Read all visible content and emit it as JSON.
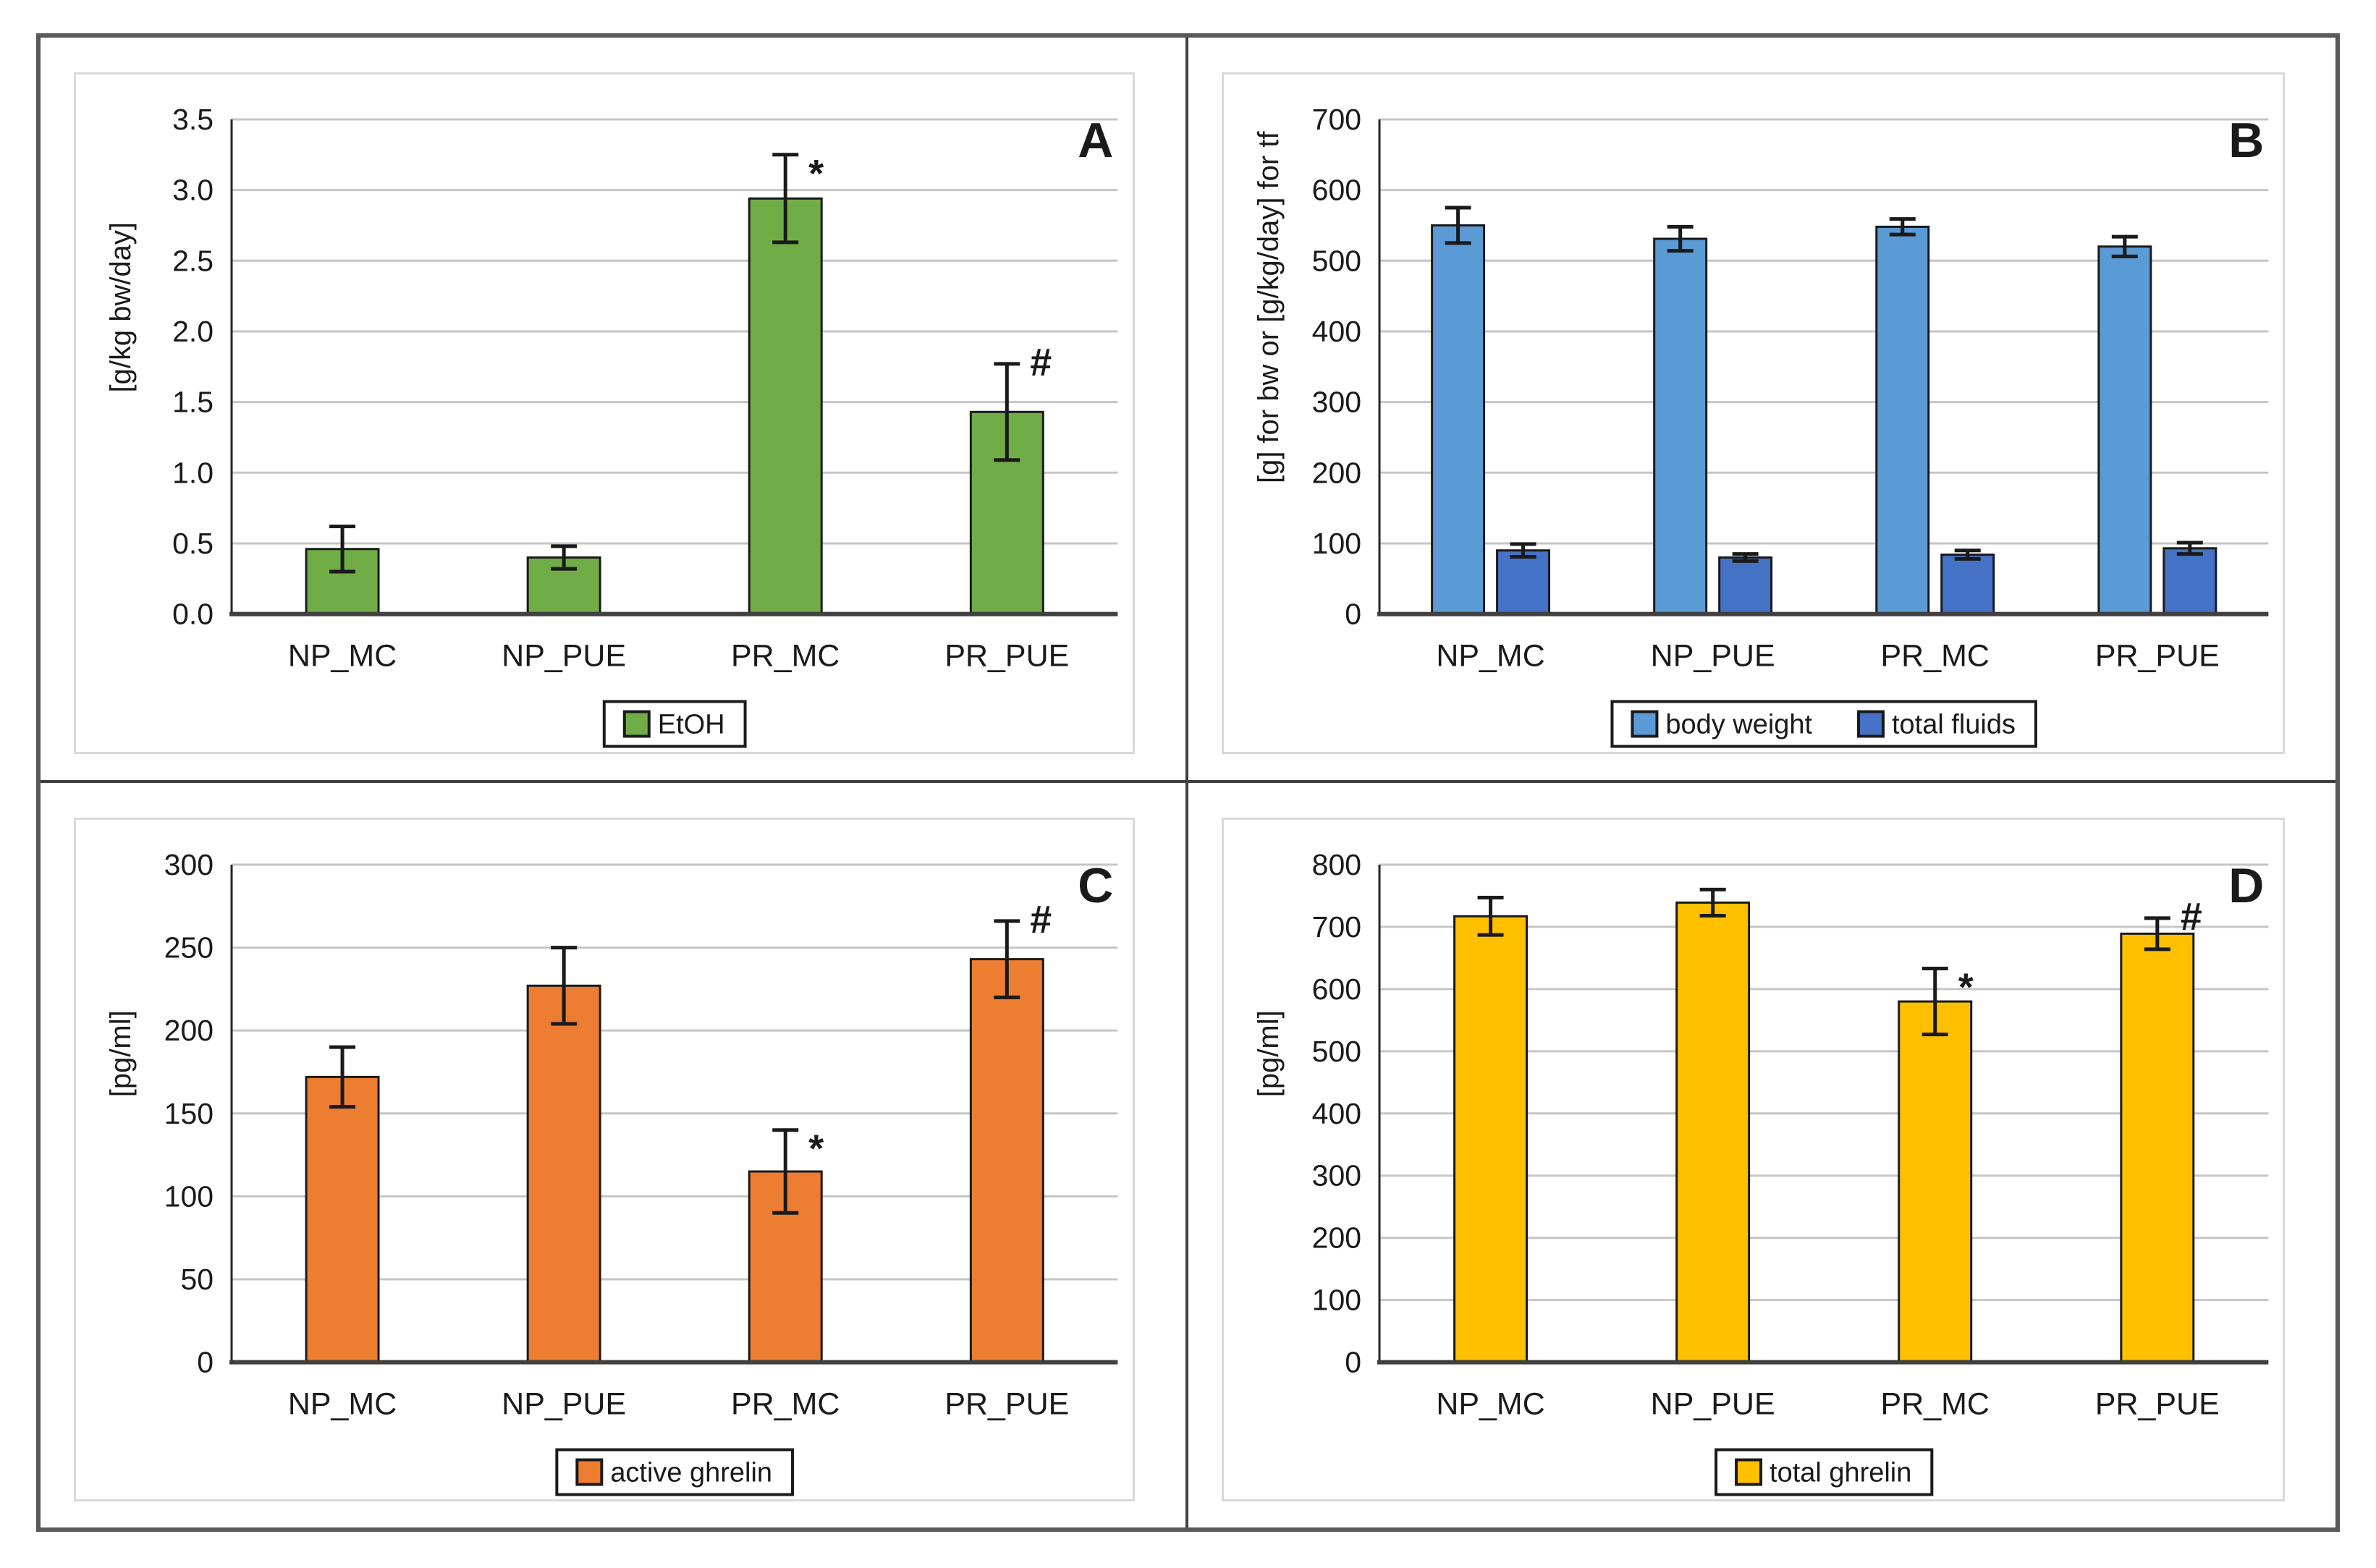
{
  "figure": {
    "description": "Four-panel bar chart figure (A, B, C, D) comparing groups NP_MC, NP_PUE, PR_MC, PR_PUE with standard-error bars and significance marks",
    "style": {
      "outer_border_color": "#595959",
      "divider_color": "#404040",
      "chart_box_border_color": "#d9d9d9",
      "gridline_color": "#c6c6c6",
      "axis_color": "#404040",
      "text_color": "#1a1a1a",
      "bar_outline_color": "#1a1a1a",
      "background": "#ffffff"
    }
  },
  "chart_data": [
    {
      "type": "bar",
      "panel_letter": "A",
      "ylabel": "[g/kg bw/day]",
      "ylim": [
        0,
        3.5
      ],
      "y_step": 0.5,
      "y_decimals": 1,
      "grid": true,
      "legend_position": "bottom",
      "categories": [
        "NP_MC",
        "NP_PUE",
        "PR_MC",
        "PR_PUE"
      ],
      "series": [
        {
          "name": "EtOH",
          "color": "#70AD47",
          "values": [
            0.46,
            0.4,
            2.94,
            1.43
          ],
          "errors": [
            0.16,
            0.08,
            0.31,
            0.34
          ]
        }
      ],
      "annotations": [
        {
          "category_index": 2,
          "series_index": 0,
          "symbol": "*"
        },
        {
          "category_index": 3,
          "series_index": 0,
          "symbol": "#"
        }
      ]
    },
    {
      "type": "bar",
      "panel_letter": "B",
      "ylabel": "[g] for bw or [g/kg/day] for tf",
      "ylim": [
        0,
        700
      ],
      "y_step": 100,
      "y_decimals": 0,
      "grid": true,
      "legend_position": "bottom",
      "categories": [
        "NP_MC",
        "NP_PUE",
        "PR_MC",
        "PR_PUE"
      ],
      "series": [
        {
          "name": "body weight",
          "color": "#5B9BD5",
          "values": [
            550,
            531,
            548,
            520
          ],
          "errors": [
            25,
            17,
            11,
            14
          ]
        },
        {
          "name": "total fluids",
          "color": "#4472C4",
          "values": [
            90,
            80,
            84,
            93
          ],
          "errors": [
            9,
            5,
            6,
            8
          ]
        }
      ],
      "annotations": []
    },
    {
      "type": "bar",
      "panel_letter": "C",
      "ylabel": "[pg/ml]",
      "ylim": [
        0,
        300
      ],
      "y_step": 50,
      "y_decimals": 0,
      "grid": true,
      "legend_position": "bottom",
      "categories": [
        "NP_MC",
        "NP_PUE",
        "PR_MC",
        "PR_PUE"
      ],
      "series": [
        {
          "name": "active ghrelin",
          "color": "#ED7D31",
          "values": [
            172,
            227,
            115,
            243
          ],
          "errors": [
            18,
            23,
            25,
            23
          ]
        }
      ],
      "annotations": [
        {
          "category_index": 2,
          "series_index": 0,
          "symbol": "*"
        },
        {
          "category_index": 3,
          "series_index": 0,
          "symbol": "#"
        }
      ]
    },
    {
      "type": "bar",
      "panel_letter": "D",
      "ylabel": "[pg/ml]",
      "ylim": [
        0,
        800
      ],
      "y_step": 100,
      "y_decimals": 0,
      "grid": true,
      "legend_position": "bottom",
      "categories": [
        "NP_MC",
        "NP_PUE",
        "PR_MC",
        "PR_PUE"
      ],
      "series": [
        {
          "name": "total ghrelin",
          "color": "#FFC000",
          "values": [
            717,
            739,
            580,
            689
          ],
          "errors": [
            30,
            21,
            53,
            25
          ]
        }
      ],
      "annotations": [
        {
          "category_index": 2,
          "series_index": 0,
          "symbol": "*"
        },
        {
          "category_index": 3,
          "series_index": 0,
          "symbol": "#"
        }
      ]
    }
  ]
}
